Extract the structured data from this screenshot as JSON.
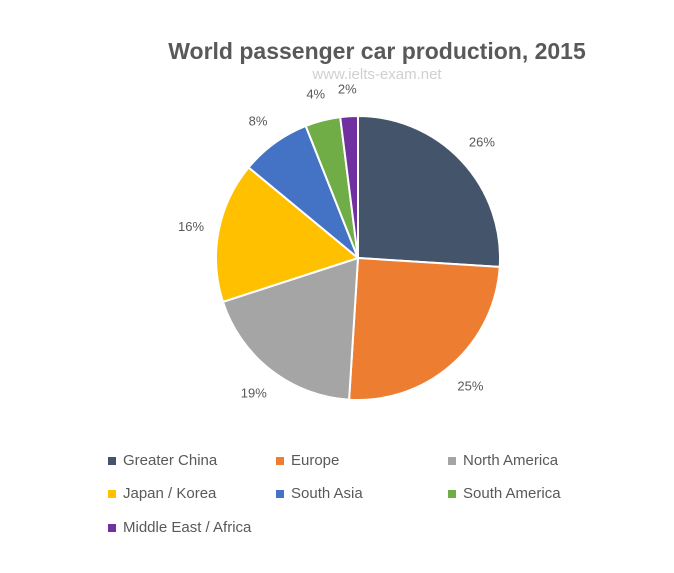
{
  "chart_data": {
    "type": "pie",
    "title": "World passenger car production, 2015",
    "watermark": "www.ielts-exam.net",
    "categories": [
      "Greater China",
      "Europe",
      "North America",
      "Japan / Korea",
      "South Asia",
      "South America",
      "Middle East / Africa"
    ],
    "values": [
      26,
      25,
      19,
      16,
      8,
      4,
      2
    ],
    "labels": [
      "26%",
      "25%",
      "19%",
      "16%",
      "8%",
      "4%",
      "2%"
    ],
    "colors": [
      "#44546a",
      "#ed7d31",
      "#a5a5a5",
      "#ffc000",
      "#4472c4",
      "#70ad47",
      "#7030a0"
    ],
    "legend_position": "bottom"
  }
}
